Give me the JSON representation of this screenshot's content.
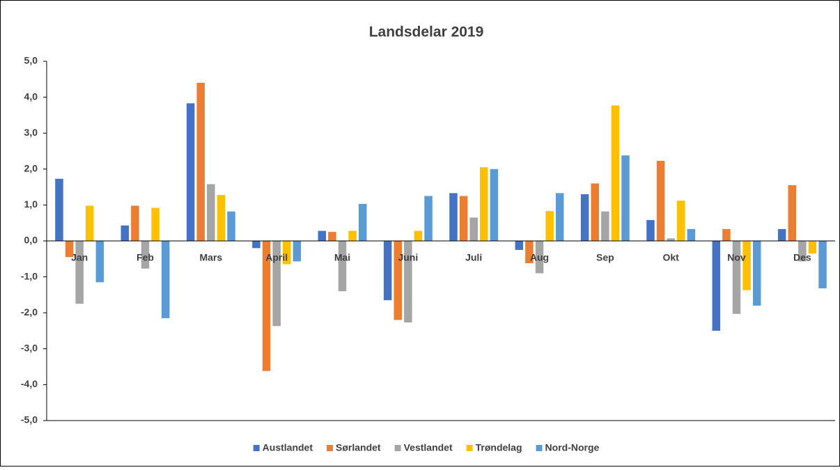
{
  "chart_data": {
    "type": "bar",
    "title": "Landsdelar 2019",
    "categories": [
      "Jan",
      "Feb",
      "Mars",
      "April",
      "Mai",
      "Juni",
      "Juli",
      "Aug",
      "Sep",
      "Okt",
      "Nov",
      "Des"
    ],
    "series": [
      {
        "name": "Austlandet",
        "color": "#4472c4",
        "values": [
          1.73,
          0.43,
          3.83,
          -0.2,
          0.28,
          -1.65,
          1.33,
          -0.25,
          1.3,
          0.58,
          -2.5,
          0.33
        ]
      },
      {
        "name": "Sørlandet",
        "color": "#ed7d31",
        "values": [
          -0.45,
          0.98,
          4.4,
          -3.62,
          0.25,
          -2.2,
          1.25,
          -0.62,
          1.6,
          2.23,
          0.33,
          1.55
        ]
      },
      {
        "name": "Vestlandet",
        "color": "#a5a5a5",
        "values": [
          -1.75,
          -0.77,
          1.58,
          -2.37,
          -1.4,
          -2.27,
          0.65,
          -0.9,
          0.82,
          0.07,
          -2.03,
          -0.57
        ]
      },
      {
        "name": "Trøndelag",
        "color": "#ffc000",
        "values": [
          0.98,
          0.92,
          1.28,
          -0.65,
          0.28,
          0.28,
          2.05,
          0.83,
          3.77,
          1.12,
          -1.37,
          -0.35
        ]
      },
      {
        "name": "Nord-Norge",
        "color": "#5b9bd5",
        "values": [
          -1.15,
          -2.15,
          0.82,
          -0.57,
          1.03,
          1.25,
          2.0,
          1.33,
          2.38,
          0.33,
          -1.8,
          -1.32
        ]
      }
    ],
    "ylim": [
      -5,
      5
    ],
    "yticks": [
      {
        "value": -5,
        "label": "-5,0"
      },
      {
        "value": -4,
        "label": "-4,0"
      },
      {
        "value": -3,
        "label": "-3,0"
      },
      {
        "value": -2,
        "label": "-2,0"
      },
      {
        "value": -1,
        "label": "-1,0"
      },
      {
        "value": 0,
        "label": "0,0"
      },
      {
        "value": 1,
        "label": "1,0"
      },
      {
        "value": 2,
        "label": "2,0"
      },
      {
        "value": 3,
        "label": "3,0"
      },
      {
        "value": 4,
        "label": "4,0"
      },
      {
        "value": 5,
        "label": "5,0"
      }
    ],
    "legend": "bottom"
  }
}
